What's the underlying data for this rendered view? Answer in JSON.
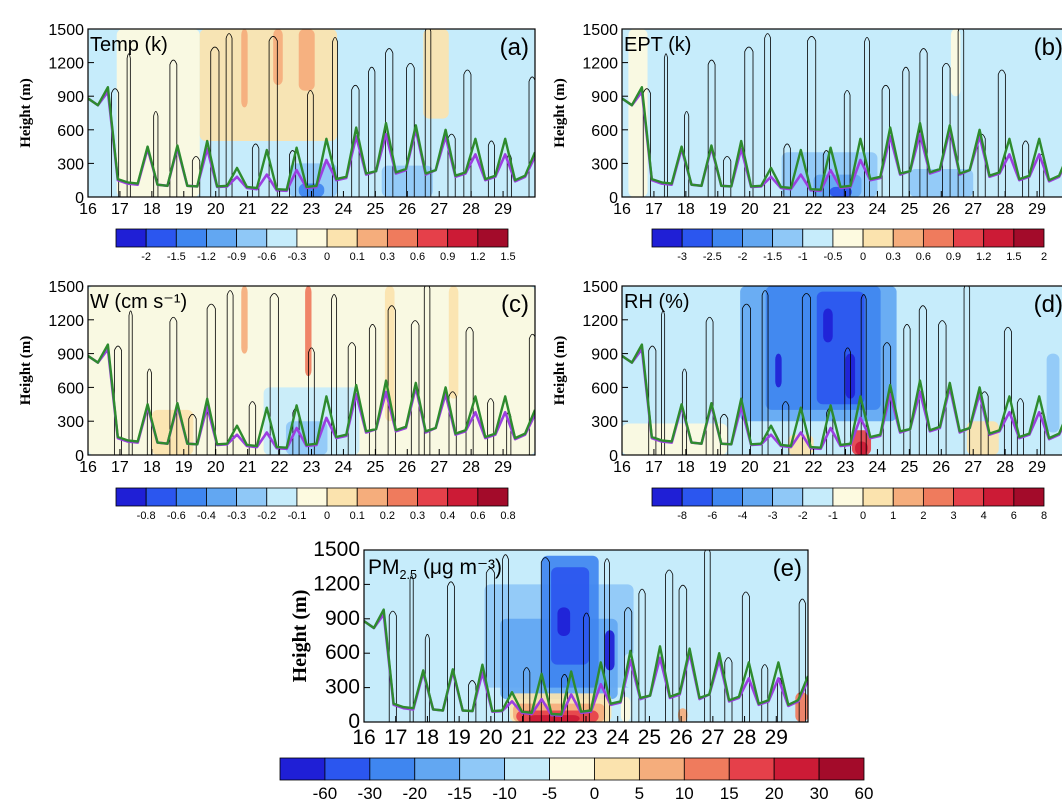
{
  "figure": {
    "x_ticks": [
      "16",
      "17",
      "18",
      "19",
      "20",
      "21",
      "22",
      "23",
      "24",
      "25",
      "26",
      "27",
      "28",
      "29"
    ],
    "y_ticks": [
      0,
      300,
      600,
      900,
      1200,
      1500
    ],
    "ylabel": "Height (m)"
  },
  "colors": {
    "palette": [
      "#1f1fd6",
      "#2b56ef",
      "#3f86f0",
      "#62a7f2",
      "#8fc8f7",
      "#c6ecfb",
      "#fdfae0",
      "#fbe3ae",
      "#f5ad7c",
      "#ef7b5d",
      "#e5404a",
      "#cc1b36",
      "#a30b2a"
    ],
    "pbl_green": "#2e8b2e",
    "pbl_purple": "#9b3fe0",
    "contour": "#000000"
  },
  "chart_data": [
    {
      "id": "a",
      "type": "heatmap",
      "title": "Temp (k)",
      "panel_label": "(a)",
      "ylabel": "Height (m)",
      "ylim": [
        0,
        1500
      ],
      "xlim": [
        16,
        30
      ],
      "colorbar_labels": [
        "-2",
        "-1.5",
        "-1.2",
        "-0.9",
        "-0.6",
        "-0.3",
        "0",
        "0.1",
        "0.3",
        "0.6",
        "0.9",
        "1.2",
        "1.5"
      ],
      "pbl_heights_model1": [
        880,
        820,
        940,
        150,
        120,
        110,
        430,
        110,
        100,
        440,
        100,
        95,
        430,
        90,
        95,
        180,
        80,
        70,
        200,
        60,
        55,
        240,
        80,
        90,
        330,
        150,
        170,
        540,
        200,
        230,
        560,
        210,
        240,
        600,
        200,
        240,
        540,
        180,
        210,
        380,
        150,
        180,
        380,
        140,
        180,
        360
      ],
      "pbl_heights_model2": [
        880,
        820,
        980,
        160,
        130,
        120,
        450,
        110,
        100,
        460,
        100,
        95,
        500,
        95,
        100,
        260,
        90,
        80,
        420,
        70,
        65,
        440,
        90,
        100,
        520,
        160,
        180,
        620,
        210,
        230,
        660,
        220,
        250,
        640,
        210,
        240,
        600,
        190,
        220,
        520,
        160,
        190,
        520,
        150,
        190,
        400
      ]
    },
    {
      "id": "b",
      "type": "heatmap",
      "title": "EPT (k)",
      "panel_label": "(b)",
      "ylabel": "Height (m)",
      "ylim": [
        0,
        1500
      ],
      "xlim": [
        16,
        30
      ],
      "colorbar_labels": [
        "-3",
        "-2.5",
        "-2",
        "-1.5",
        "-1",
        "-0.5",
        "0",
        "0.3",
        "0.6",
        "0.9",
        "1.2",
        "1.5",
        "2"
      ],
      "pbl_heights_model1": [
        880,
        820,
        940,
        150,
        120,
        110,
        430,
        110,
        100,
        440,
        100,
        95,
        430,
        90,
        95,
        180,
        80,
        70,
        200,
        60,
        55,
        240,
        80,
        90,
        330,
        150,
        170,
        540,
        200,
        230,
        560,
        210,
        240,
        600,
        200,
        240,
        540,
        180,
        210,
        380,
        150,
        180,
        380,
        140,
        180,
        360
      ],
      "pbl_heights_model2": [
        880,
        820,
        980,
        160,
        130,
        120,
        450,
        110,
        100,
        460,
        100,
        95,
        500,
        95,
        100,
        260,
        90,
        80,
        420,
        70,
        65,
        440,
        90,
        100,
        520,
        160,
        180,
        620,
        210,
        230,
        660,
        220,
        250,
        640,
        210,
        240,
        600,
        190,
        220,
        520,
        160,
        190,
        520,
        150,
        190,
        400
      ]
    },
    {
      "id": "c",
      "type": "heatmap",
      "title": "W (cm s⁻¹)",
      "panel_label": "(c)",
      "ylabel": "Height (m)",
      "ylim": [
        0,
        1500
      ],
      "xlim": [
        16,
        30
      ],
      "colorbar_labels": [
        "-0.8",
        "-0.6",
        "-0.4",
        "-0.3",
        "-0.2",
        "-0.1",
        "0",
        "0.1",
        "0.2",
        "0.3",
        "0.4",
        "0.6",
        "0.8"
      ],
      "pbl_heights_model1": [
        880,
        820,
        940,
        150,
        120,
        110,
        430,
        110,
        100,
        440,
        100,
        95,
        430,
        90,
        95,
        180,
        80,
        70,
        200,
        60,
        55,
        240,
        80,
        90,
        330,
        150,
        170,
        540,
        200,
        230,
        560,
        210,
        240,
        600,
        200,
        240,
        540,
        180,
        210,
        380,
        150,
        180,
        380,
        140,
        180,
        360
      ],
      "pbl_heights_model2": [
        880,
        820,
        980,
        160,
        130,
        120,
        450,
        110,
        100,
        460,
        100,
        95,
        500,
        95,
        100,
        260,
        90,
        80,
        420,
        70,
        65,
        440,
        90,
        100,
        520,
        160,
        180,
        620,
        210,
        230,
        660,
        220,
        250,
        640,
        210,
        240,
        600,
        190,
        220,
        520,
        160,
        190,
        520,
        150,
        190,
        400
      ]
    },
    {
      "id": "d",
      "type": "heatmap",
      "title": "RH (%)",
      "panel_label": "(d)",
      "ylabel": "Height (m)",
      "ylim": [
        0,
        1500
      ],
      "xlim": [
        16,
        30
      ],
      "colorbar_labels": [
        "-8",
        "-6",
        "-4",
        "-3",
        "-2",
        "-1",
        "0",
        "1",
        "2",
        "3",
        "4",
        "6",
        "8"
      ],
      "pbl_heights_model1": [
        880,
        820,
        940,
        150,
        120,
        110,
        430,
        110,
        100,
        440,
        100,
        95,
        430,
        90,
        95,
        180,
        80,
        70,
        200,
        60,
        55,
        240,
        80,
        90,
        330,
        150,
        170,
        540,
        200,
        230,
        560,
        210,
        240,
        600,
        200,
        240,
        540,
        180,
        210,
        380,
        150,
        180,
        380,
        140,
        180,
        360
      ],
      "pbl_heights_model2": [
        880,
        820,
        980,
        160,
        130,
        120,
        450,
        110,
        100,
        460,
        100,
        95,
        500,
        95,
        100,
        260,
        90,
        80,
        420,
        70,
        65,
        440,
        90,
        100,
        520,
        160,
        180,
        620,
        210,
        230,
        660,
        220,
        250,
        640,
        210,
        240,
        600,
        190,
        220,
        520,
        160,
        190,
        520,
        150,
        190,
        400
      ]
    },
    {
      "id": "e",
      "type": "heatmap",
      "title_main": "PM",
      "title_sub": "2.5",
      "title_unit": " (μg m⁻³)",
      "panel_label": "(e)",
      "ylabel": "Height (m)",
      "ylim": [
        0,
        1500
      ],
      "xlim": [
        16,
        30
      ],
      "colorbar_labels": [
        "-60",
        "-30",
        "-20",
        "-15",
        "-10",
        "-5",
        "0",
        "5",
        "10",
        "15",
        "20",
        "30",
        "60"
      ],
      "pbl_heights_model1": [
        880,
        820,
        940,
        150,
        120,
        110,
        430,
        110,
        100,
        440,
        100,
        95,
        430,
        90,
        95,
        180,
        80,
        70,
        200,
        60,
        55,
        240,
        80,
        90,
        330,
        150,
        170,
        540,
        200,
        230,
        560,
        210,
        240,
        600,
        200,
        240,
        540,
        180,
        210,
        380,
        150,
        180,
        380,
        140,
        180,
        360
      ],
      "pbl_heights_model2": [
        880,
        820,
        980,
        160,
        130,
        120,
        450,
        110,
        100,
        460,
        100,
        95,
        500,
        95,
        100,
        260,
        90,
        80,
        420,
        70,
        65,
        440,
        90,
        100,
        520,
        160,
        180,
        620,
        210,
        230,
        660,
        220,
        250,
        640,
        210,
        240,
        600,
        190,
        220,
        520,
        160,
        190,
        520,
        150,
        190,
        400
      ]
    }
  ]
}
